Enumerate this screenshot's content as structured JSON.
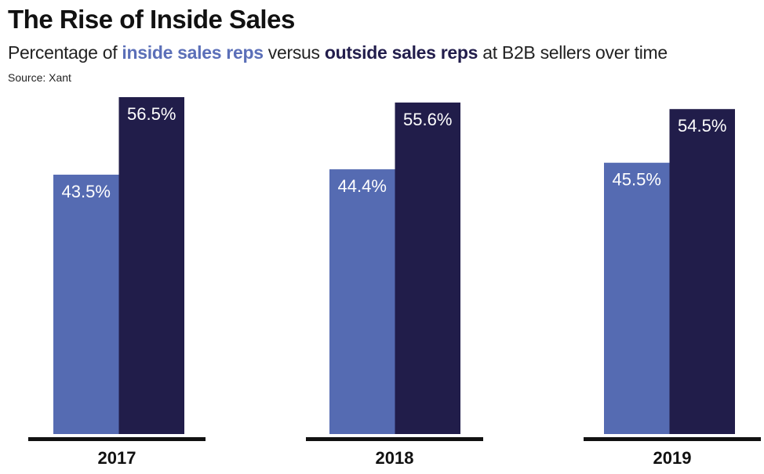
{
  "chart_data": {
    "type": "bar",
    "title": "The Rise of Inside Sales",
    "subtitle": {
      "prefix": "Percentage of ",
      "series_a": "inside sales reps",
      "middle": " versus ",
      "series_b": "outside sales reps",
      "suffix": " at B2B sellers over time"
    },
    "source": "Source: Xant",
    "categories": [
      "2017",
      "2018",
      "2019"
    ],
    "series": [
      {
        "name": "inside sales reps",
        "color": "#556bb2",
        "values": [
          43.5,
          44.4,
          45.5
        ],
        "labels": [
          "43.5%",
          "44.4%",
          "45.5%"
        ]
      },
      {
        "name": "outside sales reps",
        "color": "#211d4a",
        "values": [
          56.5,
          55.6,
          54.5
        ],
        "labels": [
          "56.5%",
          "55.6%",
          "54.5%"
        ]
      }
    ],
    "ylim": [
      0,
      100
    ],
    "grid": false,
    "legend": "subtitle"
  }
}
